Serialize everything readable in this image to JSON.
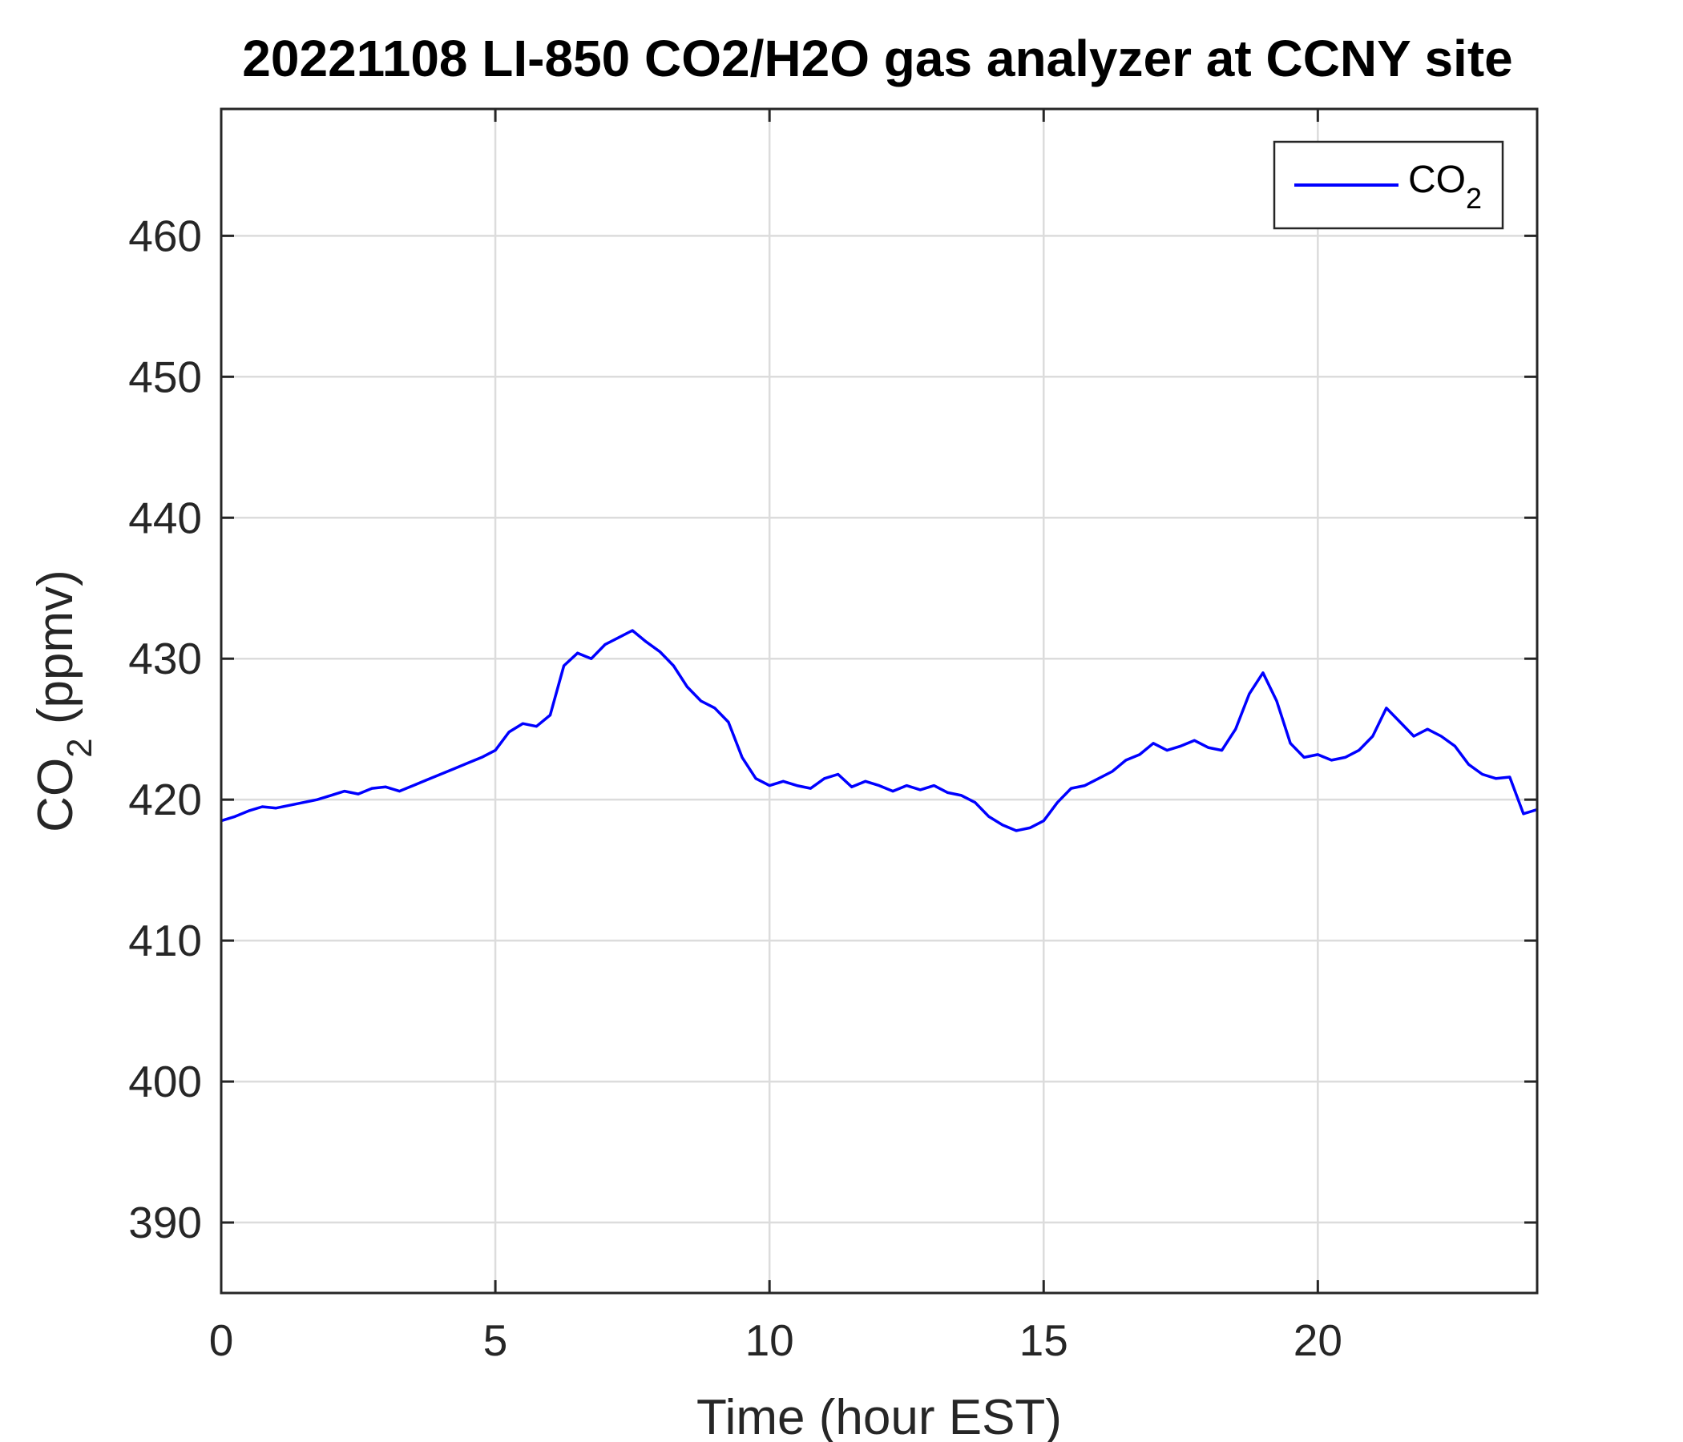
{
  "chart_data": {
    "type": "line",
    "title": "20221108 LI-850 CO2/H2O gas analyzer at CCNY site",
    "xlabel": "Time (hour EST)",
    "ylabel": {
      "main": "CO",
      "sub": "2",
      "rest": " (ppmv)"
    },
    "xlim": [
      0,
      24
    ],
    "ylim": [
      385,
      469
    ],
    "xticks": [
      0,
      5,
      10,
      15,
      20
    ],
    "xtick_labels": [
      "0",
      "5",
      "10",
      "15",
      "20"
    ],
    "yticks": [
      390,
      400,
      410,
      420,
      430,
      440,
      450,
      460
    ],
    "ytick_labels": [
      "390",
      "400",
      "410",
      "420",
      "430",
      "440",
      "450",
      "460"
    ],
    "grid": true,
    "legend_position": "top-right",
    "series": [
      {
        "name": {
          "main": "CO",
          "sub": "2"
        },
        "color": "#0000ff",
        "x": [
          0.0,
          0.25,
          0.5,
          0.75,
          1.0,
          1.25,
          1.5,
          1.75,
          2.0,
          2.25,
          2.5,
          2.75,
          3.0,
          3.25,
          3.5,
          3.75,
          4.0,
          4.25,
          4.5,
          4.75,
          5.0,
          5.25,
          5.5,
          5.75,
          6.0,
          6.25,
          6.5,
          6.75,
          7.0,
          7.25,
          7.5,
          7.75,
          8.0,
          8.25,
          8.5,
          8.75,
          9.0,
          9.25,
          9.5,
          9.75,
          10.0,
          10.25,
          10.5,
          10.75,
          11.0,
          11.25,
          11.5,
          11.75,
          12.0,
          12.25,
          12.5,
          12.75,
          13.0,
          13.25,
          13.5,
          13.75,
          14.0,
          14.25,
          14.5,
          14.75,
          15.0,
          15.25,
          15.5,
          15.75,
          16.0,
          16.25,
          16.5,
          16.75,
          17.0,
          17.25,
          17.5,
          17.75,
          18.0,
          18.25,
          18.5,
          18.75,
          19.0,
          19.25,
          19.5,
          19.75,
          20.0,
          20.25,
          20.5,
          20.75,
          21.0,
          21.25,
          21.5,
          21.75,
          22.0,
          22.25,
          22.5,
          22.75,
          23.0,
          23.25,
          23.5,
          23.75,
          24.0
        ],
        "y": [
          418.5,
          418.8,
          419.2,
          419.5,
          419.4,
          419.6,
          419.8,
          420.0,
          420.3,
          420.6,
          420.4,
          420.8,
          420.9,
          420.6,
          421.0,
          421.4,
          421.8,
          422.2,
          422.6,
          423.0,
          423.5,
          424.8,
          425.4,
          425.2,
          426.0,
          429.5,
          430.4,
          430.0,
          431.0,
          431.5,
          432.0,
          431.2,
          430.5,
          429.5,
          428.0,
          427.0,
          426.5,
          425.5,
          423.0,
          421.5,
          421.0,
          421.3,
          421.0,
          420.8,
          421.5,
          421.8,
          420.9,
          421.3,
          421.0,
          420.6,
          421.0,
          420.7,
          421.0,
          420.5,
          420.3,
          419.8,
          418.8,
          418.2,
          417.8,
          418.0,
          418.5,
          419.8,
          420.8,
          421.0,
          421.5,
          422.0,
          422.8,
          423.2,
          424.0,
          423.5,
          423.8,
          424.2,
          423.7,
          423.5,
          425.0,
          427.5,
          429.0,
          427.0,
          424.0,
          423.0,
          423.2,
          422.8,
          423.0,
          423.5,
          424.5,
          426.5,
          425.5,
          424.5,
          425.0,
          424.5,
          423.8,
          422.5,
          421.8,
          421.5,
          421.6,
          419.0,
          419.3
        ]
      }
    ]
  }
}
